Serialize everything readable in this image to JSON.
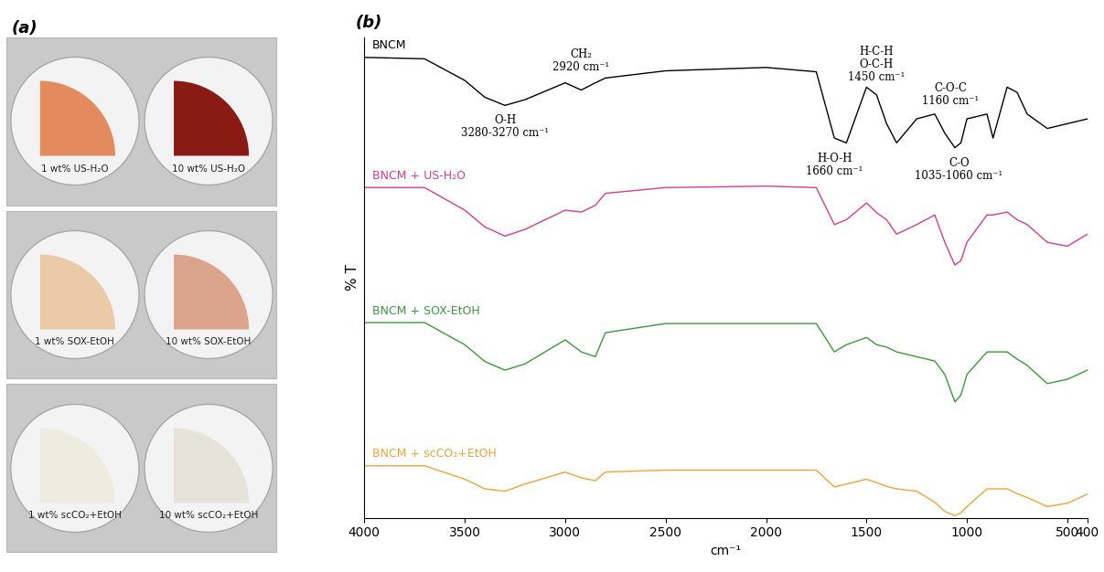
{
  "chart_data": {
    "type": "line",
    "panel_label": "(b)",
    "x_label": "cm⁻¹",
    "y_label": "% T",
    "xlim": [
      4000,
      400
    ],
    "xticks": [
      4000,
      3500,
      3000,
      2500,
      2000,
      1500,
      1000,
      500,
      400
    ],
    "ylim": [
      0,
      100
    ],
    "tick_labels": "x",
    "grid": false,
    "x": [
      4000,
      3700,
      3500,
      3400,
      3300,
      3200,
      3000,
      2920,
      2850,
      2800,
      2500,
      2000,
      1750,
      1660,
      1600,
      1500,
      1450,
      1400,
      1350,
      1250,
      1160,
      1110,
      1060,
      1030,
      1000,
      900,
      870,
      800,
      750,
      700,
      600,
      500,
      400
    ],
    "series": [
      {
        "name": "BNCM",
        "color": "#000000",
        "values": [
          95.8,
          95.5,
          91,
          87.5,
          85.8,
          87,
          90.5,
          89,
          90.5,
          91.5,
          93,
          93.7,
          92.8,
          79,
          78,
          89.6,
          88,
          82,
          78,
          83,
          84,
          80,
          77,
          78,
          83,
          84,
          79,
          89.6,
          88.5,
          84,
          81,
          82,
          83
        ]
      },
      {
        "name": "BNCM + US-H₂O",
        "color": "#d63c96",
        "values": [
          68.7,
          68.7,
          64,
          60.5,
          58.6,
          60,
          64,
          63.6,
          65,
          67.5,
          68.7,
          69,
          68.7,
          61,
          62,
          65.5,
          63.5,
          62,
          59,
          61,
          63,
          57.3,
          52.6,
          53.5,
          57.3,
          63,
          63,
          63.6,
          62,
          61,
          57.3,
          56.5,
          59
        ]
      },
      {
        "name": "BNCM + SOX-EtOH",
        "color": "#3a9a3a",
        "values": [
          40.6,
          40.6,
          36,
          32.5,
          30.7,
          32,
          37,
          34.5,
          33.5,
          38.5,
          40.4,
          40.4,
          40.4,
          34.5,
          36,
          37.5,
          36,
          35.5,
          34.5,
          33.5,
          32.6,
          29.8,
          24.1,
          25.5,
          29.8,
          34.5,
          34.5,
          34.5,
          33,
          31.7,
          27.9,
          28.8,
          30.7
        ]
      },
      {
        "name": "BNCM + scCO₂+EtOH",
        "color": "#f2a33a",
        "values": [
          10.8,
          10.8,
          8,
          6,
          5.5,
          7,
          9.5,
          8.3,
          7.7,
          9.5,
          9.9,
          9.9,
          9.9,
          6.4,
          7,
          8,
          7.3,
          6.5,
          6,
          5.5,
          3.2,
          1.3,
          0.4,
          1,
          2.3,
          6,
          6,
          6,
          5,
          4.2,
          2.3,
          3,
          4.9
        ]
      }
    ],
    "annotations": [
      {
        "text": "O-H\n3280-3270 cm⁻¹"
      },
      {
        "text": "CH₂\n2920 cm⁻¹"
      },
      {
        "text": "H-O-H\n1660 cm⁻¹"
      },
      {
        "text": "H-C-H\nO-C-H\n1450 cm⁻¹"
      },
      {
        "text": "C-O-C\n1160 cm⁻¹"
      },
      {
        "text": "C-O\n1035-1060 cm⁻¹"
      }
    ]
  },
  "photo": {
    "panel_label": "(a)",
    "samples": [
      {
        "label": "1 wt% US-H₂O",
        "color": "#e38b5c"
      },
      {
        "label": "10 wt% US-H₂O",
        "color": "#8a1a14"
      },
      {
        "label": "1 wt% SOX-EtOH",
        "color": "#ebcaa8"
      },
      {
        "label": "10 wt% SOX-EtOH",
        "color": "#dca48c"
      },
      {
        "label": "1 wt% scCO₂+EtOH",
        "color": "#eeebe1"
      },
      {
        "label": "10 wt% scCO₂+EtOH",
        "color": "#e5e3da"
      }
    ]
  }
}
